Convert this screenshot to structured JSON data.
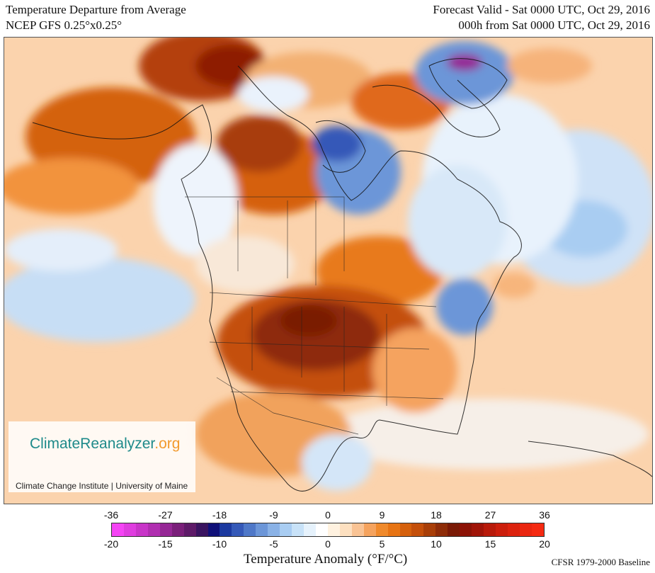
{
  "header": {
    "title_line1": "Temperature Departure from Average",
    "title_line2": "NCEP GFS 0.25°x0.25°",
    "valid_line1": "Forecast Valid - Sat 0000 UTC, Oct 29, 2016",
    "valid_line2": "000h from Sat 0000 UTC, Oct 29, 2016"
  },
  "logo": {
    "name_part1": "ClimateReanalyzer",
    "name_part2": ".org",
    "subtitle": "Climate Change Institute | University of Maine"
  },
  "legend": {
    "label": "Temperature Anomaly (°F/°C)",
    "baseline": "CFSR 1979-2000 Baseline",
    "ticks_f": [
      "-36",
      "-27",
      "-18",
      "-9",
      "0",
      "9",
      "18",
      "27",
      "36"
    ],
    "ticks_c": [
      "-20",
      "-15",
      "-10",
      "-5",
      "0",
      "5",
      "10",
      "15",
      "20"
    ],
    "colors": [
      "#f544f5",
      "#df3ddf",
      "#c835c8",
      "#b02eb0",
      "#952795",
      "#7a1f7a",
      "#5e1a68",
      "#3a1460",
      "#101078",
      "#1c3aa0",
      "#3559b8",
      "#4f78c8",
      "#6c96d8",
      "#8ab2e6",
      "#a9cdf2",
      "#c8e2f8",
      "#e6f2fc",
      "#ffffff",
      "#fff2e0",
      "#fde0c0",
      "#f9c394",
      "#f5a35e",
      "#f08a2c",
      "#e77414",
      "#d5600c",
      "#c44f0a",
      "#a83e08",
      "#8e2c08",
      "#7a1a06",
      "#8c1206",
      "#a01408",
      "#b81a0a",
      "#cc1e0c",
      "#dc220e",
      "#ea2610",
      "#f52a12"
    ]
  }
}
